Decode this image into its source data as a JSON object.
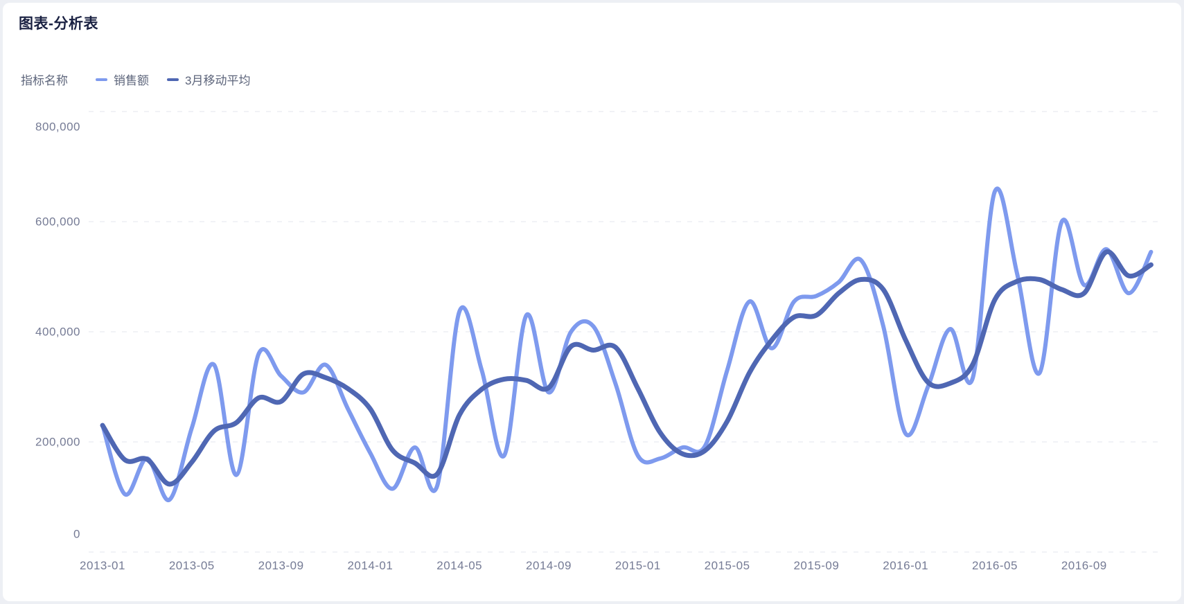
{
  "header": {
    "title": "图表-分析表"
  },
  "legend": {
    "caption": "指标名称",
    "items": [
      {
        "label": "销售额",
        "color": "#7e9aee"
      },
      {
        "label": "3月移动平均",
        "color": "#4f67b3"
      }
    ]
  },
  "chart_data": {
    "type": "line",
    "title": "图表-分析表",
    "smooth": true,
    "grid": "horizontal-dashed",
    "legend_position": "top-left",
    "colors": {
      "grid": "#e3e6ed",
      "axis_text": "#757b95"
    },
    "ylim": [
      0,
      800000
    ],
    "y_ticks": [
      {
        "value": 0,
        "label": "0"
      },
      {
        "value": 200000,
        "label": "200,000"
      },
      {
        "value": 400000,
        "label": "400,000"
      },
      {
        "value": 600000,
        "label": "600,000"
      },
      {
        "value": 800000,
        "label": "800,000"
      }
    ],
    "x": [
      "2013-01",
      "2013-02",
      "2013-03",
      "2013-04",
      "2013-05",
      "2013-06",
      "2013-07",
      "2013-08",
      "2013-09",
      "2013-10",
      "2013-11",
      "2013-12",
      "2014-01",
      "2014-02",
      "2014-03",
      "2014-04",
      "2014-05",
      "2014-06",
      "2014-07",
      "2014-08",
      "2014-09",
      "2014-10",
      "2014-11",
      "2014-12",
      "2015-01",
      "2015-02",
      "2015-03",
      "2015-04",
      "2015-05",
      "2015-06",
      "2015-07",
      "2015-08",
      "2015-09",
      "2015-10",
      "2015-11",
      "2015-12",
      "2016-01",
      "2016-02",
      "2016-03",
      "2016-04",
      "2016-05",
      "2016-06",
      "2016-07",
      "2016-08",
      "2016-09",
      "2016-10",
      "2016-11",
      "2016-12"
    ],
    "x_tick_labels": [
      "2013-01",
      "2013-05",
      "2013-09",
      "2014-01",
      "2014-05",
      "2014-09",
      "2015-01",
      "2015-05",
      "2015-09",
      "2016-01",
      "2016-05",
      "2016-09"
    ],
    "series": [
      {
        "name": "销售额",
        "color": "#7e9aee",
        "line_width": 6,
        "values": [
          230000,
          105000,
          170000,
          95000,
          225000,
          340000,
          140000,
          360000,
          320000,
          290000,
          340000,
          260000,
          180000,
          115000,
          190000,
          120000,
          437000,
          330000,
          175000,
          430000,
          290000,
          400000,
          410000,
          305000,
          175000,
          170000,
          190000,
          192000,
          330000,
          455000,
          370000,
          455000,
          465000,
          490000,
          530000,
          410000,
          215000,
          300000,
          405000,
          315000,
          655000,
          505000,
          325000,
          600000,
          485000,
          550000,
          470000,
          545000
        ]
      },
      {
        "name": "3月移动平均",
        "color": "#4f67b3",
        "line_width": 7,
        "values": [
          230000,
          167500,
          168333,
          123333,
          163333,
          220000,
          235000,
          280000,
          273333,
          323333,
          316667,
          296667,
          260000,
          185000,
          161667,
          141667,
          249000,
          295667,
          314000,
          311667,
          298333,
          373333,
          366667,
          371667,
          296667,
          216667,
          178333,
          184000,
          237333,
          325667,
          385000,
          426667,
          430000,
          470000,
          495000,
          476667,
          385000,
          308333,
          306667,
          340000,
          458333,
          491667,
          495000,
          476667,
          470000,
          545000,
          501667,
          521667
        ]
      }
    ]
  }
}
